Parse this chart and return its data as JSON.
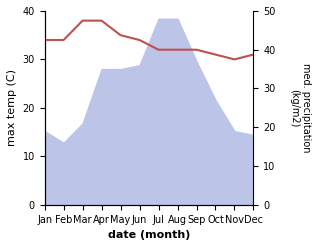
{
  "months": [
    "Jan",
    "Feb",
    "Mar",
    "Apr",
    "May",
    "Jun",
    "Jul",
    "Aug",
    "Sep",
    "Oct",
    "Nov",
    "Dec"
  ],
  "temp": [
    34,
    34,
    38,
    38,
    35,
    34,
    32,
    32,
    32,
    31,
    30,
    31
  ],
  "precip": [
    19,
    16,
    21,
    35,
    35,
    36,
    48,
    48,
    37,
    27,
    19,
    18
  ],
  "temp_color": "#c0504d",
  "precip_fill_color": "#bcc4e8",
  "ylabel_left": "max temp (C)",
  "ylabel_right": "med. precipitation\n(kg/m2)",
  "xlabel": "date (month)",
  "ylim_left": [
    0,
    40
  ],
  "ylim_right": [
    0,
    50
  ],
  "bg_color": "#ffffff"
}
